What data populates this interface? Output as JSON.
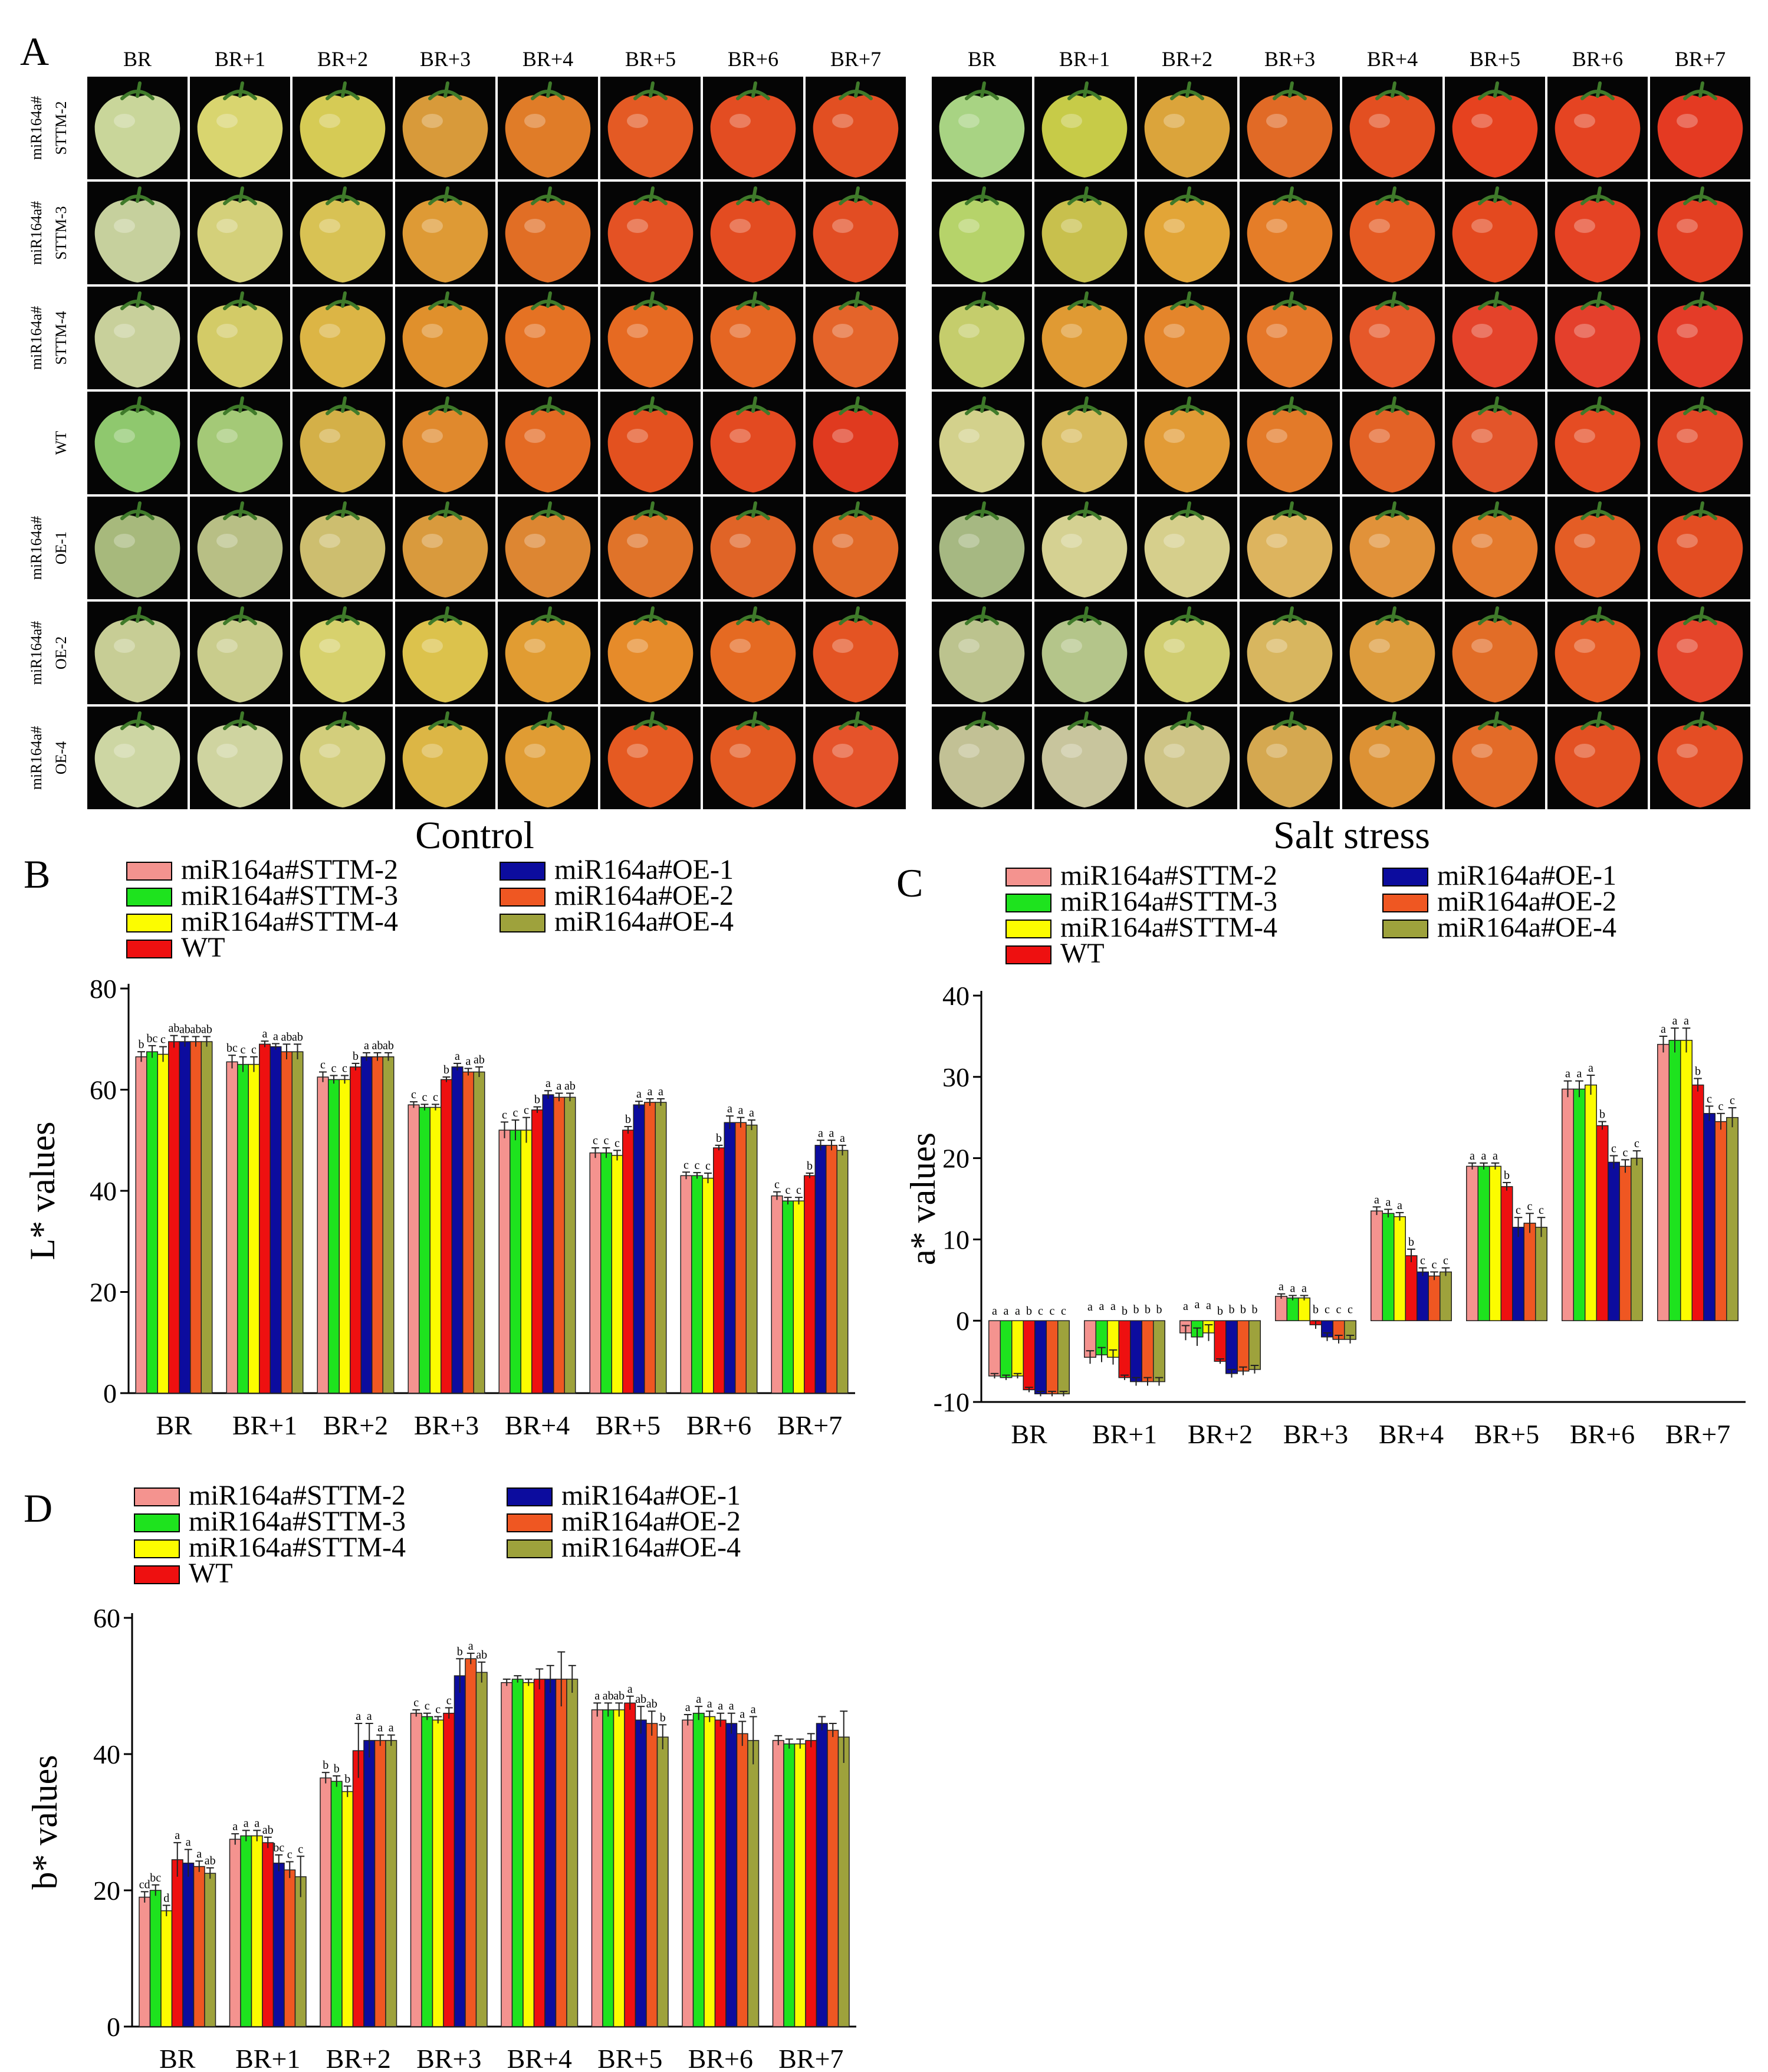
{
  "panels": {
    "a": {
      "letter": "A"
    },
    "b": {
      "letter": "B"
    },
    "c": {
      "letter": "C"
    },
    "d": {
      "letter": "D"
    }
  },
  "photo_panel": {
    "stages": [
      "BR",
      "BR+1",
      "BR+2",
      "BR+3",
      "BR+4",
      "BR+5",
      "BR+6",
      "BR+7"
    ],
    "row_labels": [
      [
        "miR164a#",
        "STTM-2"
      ],
      [
        "miR164a#",
        "STTM-3"
      ],
      [
        "miR164a#",
        "STTM-4"
      ],
      [
        "",
        "WT"
      ],
      [
        "miR164a#",
        "OE-1"
      ],
      [
        "miR164a#",
        "OE-2"
      ],
      [
        "miR164a#",
        "OE-4"
      ]
    ],
    "conditions": [
      "Control",
      "Salt stress"
    ],
    "background_color": "#050505",
    "fruit_colors": {
      "control": [
        [
          "#c9d69a",
          "#d9d56f",
          "#d6cb55",
          "#d89a3a",
          "#e07c28",
          "#e45a24",
          "#e34d22",
          "#e24f22"
        ],
        [
          "#c6d09d",
          "#d4d07a",
          "#d8c254",
          "#de9a35",
          "#e16e25",
          "#e45224",
          "#e34c21",
          "#e24d23"
        ],
        [
          "#c8d09b",
          "#d3cb67",
          "#dcb545",
          "#e0902c",
          "#e57223",
          "#e66a22",
          "#e56623",
          "#e4642a"
        ],
        [
          "#8fc86e",
          "#a4c977",
          "#d4b048",
          "#e0892d",
          "#e46a23",
          "#e3511f",
          "#e34a21",
          "#e03a1f"
        ],
        [
          "#a7b97c",
          "#b8bf85",
          "#cdbe6f",
          "#d99a3d",
          "#dd8632",
          "#e07329",
          "#e06427",
          "#e16927"
        ],
        [
          "#c7cd95",
          "#c9cc8c",
          "#d7d16d",
          "#dcc24c",
          "#e19c32",
          "#e68b2a",
          "#e56a22",
          "#e45423"
        ],
        [
          "#cdd6a3",
          "#cfd4a0",
          "#d3ce7c",
          "#dcb645",
          "#e09c33",
          "#e55a22",
          "#e35a22",
          "#e5532a"
        ]
      ],
      "salt": [
        [
          "#a8d383",
          "#c7cb48",
          "#dba43b",
          "#e16a26",
          "#e34f21",
          "#e6421f",
          "#e54422",
          "#e43a22"
        ],
        [
          "#b6d36a",
          "#c8c04d",
          "#e2a537",
          "#e57d28",
          "#e55a22",
          "#e4491f",
          "#e54324",
          "#e33f22"
        ],
        [
          "#c5cd6c",
          "#e09a33",
          "#e4852b",
          "#e57729",
          "#e6582a",
          "#e4432a",
          "#e4402c",
          "#e43c28"
        ],
        [
          "#d3d18c",
          "#d8bb5e",
          "#e29b36",
          "#e37a29",
          "#e36226",
          "#e3552a",
          "#e54c23",
          "#e34726"
        ],
        [
          "#a6b882",
          "#d5d192",
          "#d6cf8c",
          "#ddb45e",
          "#e1923a",
          "#e4792c",
          "#e45d25",
          "#e34d22"
        ],
        [
          "#bcc38e",
          "#b4c58a",
          "#d0cd70",
          "#d8b65f",
          "#dd9c3d",
          "#e26d27",
          "#e65a23",
          "#e5452a"
        ],
        [
          "#c2c195",
          "#c8c59d",
          "#cec486",
          "#d5a850",
          "#dd9235",
          "#e36b28",
          "#e35123",
          "#e44d24"
        ]
      ]
    }
  },
  "colors": {
    "miR164a#STTM-2": "#f4938f",
    "miR164a#STTM-3": "#1ee31e",
    "miR164a#STTM-4": "#fcfc00",
    "WT": "#ee1010",
    "miR164a#OE-1": "#0c0c9e",
    "miR164a#OE-2": "#ef5722",
    "miR164a#OE-4": "#9ea23c"
  },
  "chart_data": [
    {
      "id": "B",
      "type": "bar",
      "title": "",
      "xlabel": "",
      "ylabel": "L* values",
      "ylim": [
        0,
        80
      ],
      "yticks": [
        "0",
        "20",
        "40",
        "60",
        "80"
      ],
      "grid": false,
      "legend_position": "top",
      "legend_order": [
        "miR164a#STTM-2",
        "miR164a#STTM-3",
        "miR164a#STTM-4",
        "WT",
        "miR164a#OE-1",
        "miR164a#OE-2",
        "miR164a#OE-4"
      ],
      "categories": [
        "BR",
        "BR+1",
        "BR+2",
        "BR+3",
        "BR+4",
        "BR+5",
        "BR+6",
        "BR+7"
      ],
      "series": [
        {
          "name": "miR164a#STTM-2",
          "values": [
            66.5,
            65.5,
            62.5,
            57,
            52,
            47.5,
            43,
            39
          ],
          "errors": [
            1,
            1.3,
            1,
            0.6,
            1.6,
            1,
            0.7,
            0.8
          ],
          "letters": [
            "b",
            "bc",
            "c",
            "c",
            "c",
            "c",
            "c",
            "c"
          ]
        },
        {
          "name": "miR164a#STTM-3",
          "values": [
            67.5,
            65,
            62,
            56.5,
            52,
            47.5,
            43,
            38
          ],
          "errors": [
            1.2,
            1.5,
            0.8,
            0.6,
            2,
            1,
            0.6,
            0.7
          ],
          "letters": [
            "bc",
            "c",
            "c",
            "c",
            "c",
            "c",
            "c",
            "c"
          ]
        },
        {
          "name": "miR164a#STTM-4",
          "values": [
            67,
            65,
            62,
            56.5,
            52,
            47,
            42.5,
            38
          ],
          "errors": [
            1.5,
            1.5,
            0.8,
            0.6,
            2.5,
            1,
            1,
            0.7
          ],
          "letters": [
            "c",
            "c",
            "c",
            "c",
            "c",
            "c",
            "c",
            "c"
          ]
        },
        {
          "name": "WT",
          "values": [
            69.5,
            69,
            64.5,
            62,
            56,
            52,
            48.5,
            43
          ],
          "errors": [
            1.2,
            0.6,
            0.7,
            0.5,
            0.6,
            0.7,
            0.5,
            0.5
          ],
          "letters": [
            "ab",
            "a",
            "b",
            "b",
            "b",
            "b",
            "b",
            "b"
          ]
        },
        {
          "name": "miR164a#OE-1",
          "values": [
            69.5,
            68.5,
            66.5,
            64.5,
            59,
            57,
            53.5,
            49
          ],
          "errors": [
            1,
            0.6,
            0.8,
            0.7,
            0.8,
            0.7,
            1.3,
            1
          ],
          "letters": [
            "ab",
            "a",
            "a",
            "a",
            "a",
            "a",
            "a",
            "a"
          ]
        },
        {
          "name": "miR164a#OE-2",
          "values": [
            69.5,
            67.5,
            66.5,
            63.5,
            58.5,
            57.5,
            53.5,
            49
          ],
          "errors": [
            1,
            1.5,
            0.8,
            0.7,
            0.8,
            0.7,
            1,
            1
          ],
          "letters": [
            "ab",
            "ab",
            "ab",
            "a",
            "a",
            "a",
            "a",
            "a"
          ]
        },
        {
          "name": "miR164a#OE-4",
          "values": [
            69.5,
            67.5,
            66.5,
            63.5,
            58.5,
            57.5,
            53,
            48
          ],
          "errors": [
            1,
            1.5,
            0.8,
            1,
            0.8,
            0.7,
            1,
            1
          ],
          "letters": [
            "ab",
            "ab",
            "ab",
            "ab",
            "ab",
            "a",
            "a",
            "a"
          ]
        }
      ]
    },
    {
      "id": "C",
      "type": "bar",
      "title": "",
      "xlabel": "",
      "ylabel": "a* values",
      "ylim": [
        -10,
        40
      ],
      "yticks": [
        "-10",
        "0",
        "10",
        "20",
        "30",
        "40"
      ],
      "grid": false,
      "legend_position": "top",
      "legend_order": [
        "miR164a#STTM-2",
        "miR164a#STTM-3",
        "miR164a#STTM-4",
        "WT",
        "miR164a#OE-1",
        "miR164a#OE-2",
        "miR164a#OE-4"
      ],
      "categories": [
        "BR",
        "BR+1",
        "BR+2",
        "BR+3",
        "BR+4",
        "BR+5",
        "BR+6",
        "BR+7"
      ],
      "series": [
        {
          "name": "miR164a#STTM-2",
          "values": [
            -6.8,
            -4.5,
            -1.5,
            3,
            13.5,
            19,
            28.5,
            34
          ],
          "errors": [
            0.3,
            0.8,
            0.9,
            0.3,
            0.5,
            0.4,
            1,
            1
          ],
          "letters": [
            "a",
            "a",
            "a",
            "a",
            "a",
            "a",
            "a",
            "a"
          ]
        },
        {
          "name": "miR164a#STTM-3",
          "values": [
            -7,
            -4.2,
            -2,
            2.8,
            13.2,
            19,
            28.5,
            34.5
          ],
          "errors": [
            0.3,
            0.9,
            1.1,
            0.3,
            0.5,
            0.4,
            1,
            1.5
          ],
          "letters": [
            "a",
            "a",
            "a",
            "a",
            "a",
            "a",
            "a",
            "a"
          ]
        },
        {
          "name": "miR164a#STTM-4",
          "values": [
            -6.8,
            -4.5,
            -1.5,
            2.8,
            12.8,
            19,
            29,
            34.5
          ],
          "errors": [
            0.3,
            0.9,
            1,
            0.3,
            0.5,
            0.4,
            1.2,
            1.5
          ],
          "letters": [
            "a",
            "a",
            "a",
            "a",
            "a",
            "a",
            "a",
            "a"
          ]
        },
        {
          "name": "WT",
          "values": [
            -8.5,
            -7,
            -5,
            -0.5,
            8,
            16.5,
            24,
            29
          ],
          "errors": [
            0.3,
            0.3,
            0.3,
            0.5,
            0.8,
            0.5,
            0.5,
            0.8
          ],
          "letters": [
            "b",
            "b",
            "b",
            "b",
            "b",
            "b",
            "b",
            "b"
          ]
        },
        {
          "name": "miR164a#OE-1",
          "values": [
            -9,
            -7.5,
            -6.5,
            -2,
            6,
            11.5,
            19.5,
            25.5
          ],
          "errors": [
            0.3,
            0.5,
            0.5,
            0.5,
            0.5,
            1.2,
            0.8,
            0.9
          ],
          "letters": [
            "c",
            "b",
            "b",
            "c",
            "c",
            "c",
            "c",
            "c"
          ]
        },
        {
          "name": "miR164a#OE-2",
          "values": [
            -9,
            -7.5,
            -6.2,
            -2.3,
            5.5,
            12,
            19,
            24.5
          ],
          "errors": [
            0.3,
            0.5,
            0.5,
            0.5,
            0.5,
            1.2,
            0.8,
            1
          ],
          "letters": [
            "c",
            "b",
            "b",
            "c",
            "c",
            "c",
            "c",
            "c"
          ]
        },
        {
          "name": "miR164a#OE-4",
          "values": [
            -9,
            -7.5,
            -6,
            -2.3,
            6,
            11.5,
            20,
            25
          ],
          "errors": [
            0.3,
            0.5,
            0.5,
            0.5,
            0.5,
            1.2,
            0.9,
            1.2
          ],
          "letters": [
            "c",
            "b",
            "b",
            "c",
            "c",
            "c",
            "c",
            "c"
          ]
        }
      ]
    },
    {
      "id": "D",
      "type": "bar",
      "title": "",
      "xlabel": "",
      "ylabel": "b* values",
      "ylim": [
        0,
        60
      ],
      "yticks": [
        "0",
        "20",
        "40",
        "60"
      ],
      "grid": false,
      "legend_position": "top",
      "legend_order": [
        "miR164a#STTM-2",
        "miR164a#STTM-3",
        "miR164a#STTM-4",
        "WT",
        "miR164a#OE-1",
        "miR164a#OE-2",
        "miR164a#OE-4"
      ],
      "categories": [
        "BR",
        "BR+1",
        "BR+2",
        "BR+3",
        "BR+4",
        "BR+5",
        "BR+6",
        "BR+7"
      ],
      "series": [
        {
          "name": "miR164a#STTM-2",
          "values": [
            19,
            27.5,
            36.5,
            46,
            50.5,
            46.5,
            45,
            42
          ],
          "errors": [
            0.8,
            0.8,
            0.8,
            0.5,
            0.5,
            1,
            0.8,
            0.7
          ],
          "letters": [
            "cd",
            "a",
            "b",
            "c",
            "",
            "a",
            "a",
            ""
          ]
        },
        {
          "name": "miR164a#STTM-3",
          "values": [
            20,
            28,
            36,
            45.5,
            51,
            46.5,
            46,
            41.5
          ],
          "errors": [
            0.8,
            0.8,
            0.8,
            0.5,
            0.5,
            1,
            1,
            0.7
          ],
          "letters": [
            "bc",
            "a",
            "b",
            "c",
            "",
            "ab",
            "a",
            ""
          ]
        },
        {
          "name": "miR164a#STTM-4",
          "values": [
            17,
            28,
            34.5,
            45,
            50.5,
            46.5,
            45.5,
            41.5
          ],
          "errors": [
            0.8,
            0.8,
            0.8,
            0.5,
            0.5,
            1,
            0.8,
            0.7
          ],
          "letters": [
            "d",
            "a",
            "b",
            "c",
            "",
            "ab",
            "a",
            ""
          ]
        },
        {
          "name": "WT",
          "values": [
            24.5,
            27,
            40.5,
            46,
            51,
            47.5,
            45,
            42
          ],
          "errors": [
            2.5,
            0.8,
            4,
            0.8,
            1.5,
            1,
            1,
            1
          ],
          "letters": [
            "a",
            "ab",
            "a",
            "c",
            "",
            "a",
            "a",
            ""
          ]
        },
        {
          "name": "miR164a#OE-1",
          "values": [
            24,
            24,
            42,
            51.5,
            51,
            45,
            44.5,
            44.5
          ],
          "errors": [
            2,
            1.2,
            2.5,
            2.5,
            2,
            2,
            1.5,
            1
          ],
          "letters": [
            "a",
            "bc",
            "a",
            "b",
            "",
            "ab",
            "a",
            ""
          ]
        },
        {
          "name": "miR164a#OE-2",
          "values": [
            23.5,
            23,
            42,
            54,
            51,
            44.5,
            43,
            43.5
          ],
          "errors": [
            0.8,
            1.2,
            0.8,
            0.8,
            4,
            1.8,
            1.8,
            1
          ],
          "letters": [
            "a",
            "c",
            "a",
            "a",
            "",
            "ab",
            "a",
            ""
          ]
        },
        {
          "name": "miR164a#OE-4",
          "values": [
            22.5,
            22,
            42,
            52,
            51,
            42.5,
            42,
            42.5
          ],
          "errors": [
            0.8,
            3,
            0.8,
            1.5,
            2,
            1.8,
            3.5,
            3.8
          ],
          "letters": [
            "ab",
            "c",
            "a",
            "ab",
            "",
            "b",
            "a",
            ""
          ]
        }
      ]
    }
  ]
}
